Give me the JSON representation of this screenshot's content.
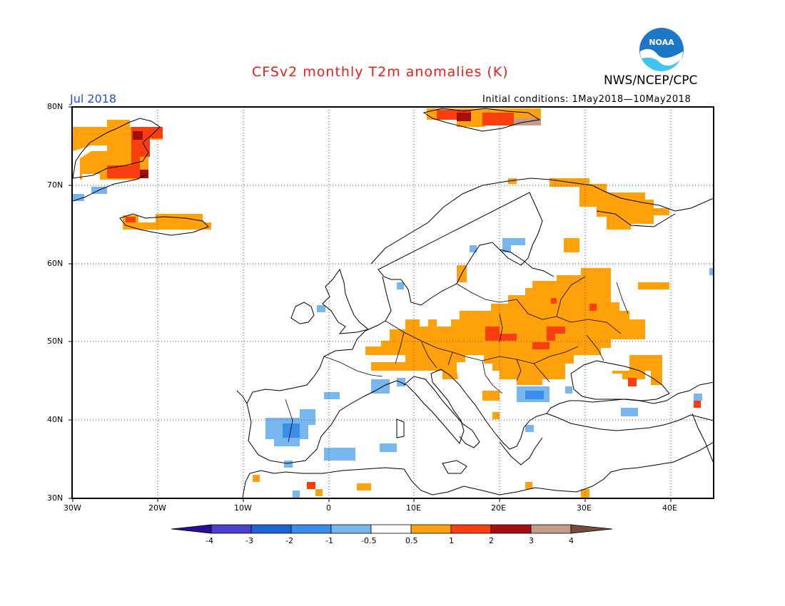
{
  "header": {
    "title": "CFSv2 monthly T2m anomalies (K)",
    "organization": "NWS/NCEP/CPC",
    "logo_text": "NOAA",
    "period": "Jul 2018",
    "initial_conditions": "Initial conditions: 1May2018—10May2018"
  },
  "map": {
    "lon_labels": [
      "30W",
      "20W",
      "10W",
      "0",
      "10E",
      "20E",
      "30E",
      "40E"
    ],
    "lat_labels": [
      "80N",
      "70N",
      "60N",
      "50N",
      "40N",
      "30N"
    ],
    "lon_range": [
      -30,
      45
    ],
    "lat_range": [
      30,
      80
    ],
    "grid": "dotted",
    "anomaly_regions": [
      {
        "region": "Greenland east coast",
        "level": "1 to 2"
      },
      {
        "region": "Iceland",
        "level": "0.5 to 1"
      },
      {
        "region": "Svalbard",
        "level": "1 to 4"
      },
      {
        "region": "Central and eastern Europe",
        "level": "0.5 to 2"
      },
      {
        "region": "Kola Peninsula / NW Russia",
        "level": "0.5 to 1"
      },
      {
        "region": "Iberian Peninsula",
        "level": "-2 to -0.5"
      },
      {
        "region": "Balkans / Bulgaria",
        "level": "-2 to -0.5"
      }
    ]
  },
  "colorbar": {
    "labels": [
      "-4",
      "-3",
      "-2",
      "-1",
      "-0.5",
      "0.5",
      "1",
      "2",
      "3",
      "4"
    ],
    "colors": [
      "#2a0d9a",
      "#4b3fd2",
      "#1f64d6",
      "#3a8de8",
      "#78b6f0",
      "#ffffff",
      "#ffa10a",
      "#fb3e0d",
      "#a60d0d",
      "#c49a8a",
      "#7a4a3a"
    ]
  }
}
